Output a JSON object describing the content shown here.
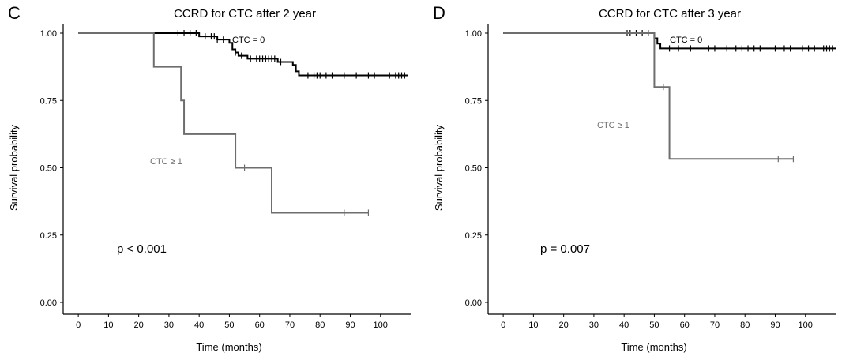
{
  "chart_data": [
    {
      "type": "line",
      "panel_letter": "C",
      "title": "CCRD for CTC after 2 year",
      "xlabel": "Time (months)",
      "ylabel": "Survival probability",
      "xlim": [
        -5,
        110
      ],
      "ylim": [
        0,
        1
      ],
      "x_ticks": [
        0,
        10,
        20,
        30,
        40,
        50,
        60,
        70,
        80,
        90,
        100
      ],
      "y_ticks": [
        0,
        0.25,
        0.5,
        0.75,
        1
      ],
      "y_tick_labels": [
        "0.00",
        "0.25",
        "0.50",
        "0.75",
        "1.00"
      ],
      "annotation": "p < 0.001",
      "series": [
        {
          "name": "CTC = 0",
          "color": "#000000",
          "steps": [
            [
              0,
              1
            ],
            [
              40,
              0.988
            ],
            [
              46,
              0.976
            ],
            [
              50,
              0.964
            ],
            [
              51,
              0.94
            ],
            [
              52,
              0.928
            ],
            [
              53,
              0.916
            ],
            [
              56,
              0.905
            ],
            [
              66,
              0.893
            ],
            [
              71,
              0.882
            ],
            [
              72,
              0.858
            ],
            [
              73,
              0.843
            ],
            [
              109,
              0.843
            ]
          ],
          "censor": [
            33,
            35,
            37,
            39,
            42,
            44,
            45,
            46,
            48,
            52,
            54,
            57,
            59,
            60,
            61,
            62,
            63,
            64,
            65,
            67,
            76,
            78,
            79,
            80,
            82,
            84,
            88,
            92,
            96,
            98,
            103,
            105,
            106,
            107,
            108
          ]
        },
        {
          "name": "CTC ≥ 1",
          "color": "#6e6e6e",
          "steps": [
            [
              0,
              1
            ],
            [
              25,
              0.875
            ],
            [
              34,
              0.75
            ],
            [
              35,
              0.625
            ],
            [
              52,
              0.5
            ],
            [
              64,
              0.333
            ],
            [
              96,
              0.333
            ]
          ],
          "censor": [
            55,
            88,
            96
          ]
        }
      ]
    },
    {
      "type": "line",
      "panel_letter": "D",
      "title": "CCRD for CTC after 3 year",
      "xlabel": "Time (months)",
      "ylabel": "Survival probability",
      "xlim": [
        -5,
        110
      ],
      "ylim": [
        0,
        1
      ],
      "x_ticks": [
        0,
        10,
        20,
        30,
        40,
        50,
        60,
        70,
        80,
        90,
        100
      ],
      "y_ticks": [
        0,
        0.25,
        0.5,
        0.75,
        1
      ],
      "y_tick_labels": [
        "0.00",
        "0.25",
        "0.50",
        "0.75",
        "1.00"
      ],
      "annotation": "p = 0.007",
      "series": [
        {
          "name": "CTC = 0",
          "color": "#000000",
          "steps": [
            [
              0,
              1
            ],
            [
              50,
              0.981
            ],
            [
              51,
              0.961
            ],
            [
              52,
              0.943
            ],
            [
              110,
              0.943
            ]
          ],
          "censor": [
            41,
            42,
            44,
            46,
            48,
            55,
            58,
            62,
            68,
            70,
            74,
            77,
            79,
            81,
            83,
            85,
            90,
            93,
            95,
            99,
            101,
            103,
            106,
            107,
            108,
            109
          ]
        },
        {
          "name": "CTC ≥ 1",
          "color": "#6e6e6e",
          "steps": [
            [
              0,
              1
            ],
            [
              50,
              0.8
            ],
            [
              55,
              0.533
            ],
            [
              96,
              0.533
            ]
          ],
          "censor": [
            53,
            91,
            96
          ]
        }
      ]
    }
  ]
}
